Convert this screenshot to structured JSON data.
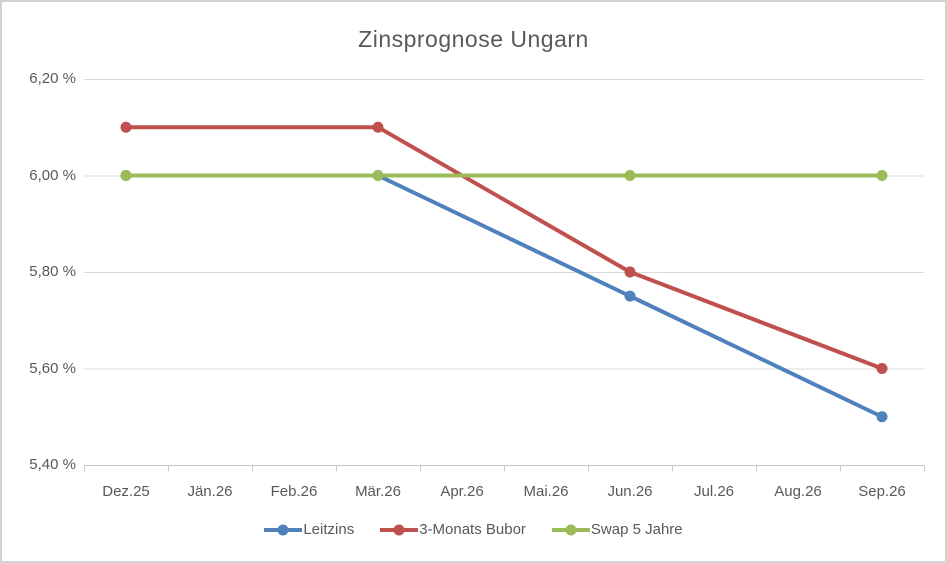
{
  "chart_data": {
    "type": "line",
    "title": "Zinsprognose Ungarn",
    "categories": [
      "Dez.25",
      "Jän.26",
      "Feb.26",
      "Mär.26",
      "Apr.26",
      "Mai.26",
      "Jun.26",
      "Jul.26",
      "Aug.26",
      "Sep.26"
    ],
    "y_axis": {
      "min": 5.4,
      "max": 6.2,
      "ticks": [
        {
          "label": "6,20 %",
          "value": 6.2
        },
        {
          "label": "6,00 %",
          "value": 6.0
        },
        {
          "label": "5,80 %",
          "value": 5.8
        },
        {
          "label": "5,60 %",
          "value": 5.6
        },
        {
          "label": "5,40 %",
          "value": 5.4
        }
      ]
    },
    "series": [
      {
        "name": "Leitzins",
        "color": "#4F81BD",
        "points": [
          {
            "category": "Dez.25",
            "value": 6.0
          },
          {
            "category": "Mär.26",
            "value": 6.0
          },
          {
            "category": "Jun.26",
            "value": 5.75
          },
          {
            "category": "Sep.26",
            "value": 5.5
          }
        ]
      },
      {
        "name": "3-Monats Bubor",
        "color": "#C0504D",
        "points": [
          {
            "category": "Dez.25",
            "value": 6.1
          },
          {
            "category": "Mär.26",
            "value": 6.1
          },
          {
            "category": "Jun.26",
            "value": 5.8
          },
          {
            "category": "Sep.26",
            "value": 5.6
          }
        ]
      },
      {
        "name": "Swap 5 Jahre",
        "color": "#9BBB59",
        "points": [
          {
            "category": "Dez.25",
            "value": 6.0
          },
          {
            "category": "Mär.26",
            "value": 6.0
          },
          {
            "category": "Jun.26",
            "value": 6.0
          },
          {
            "category": "Sep.26",
            "value": 6.0
          }
        ]
      }
    ],
    "legend": {
      "position": "bottom"
    },
    "grid": true,
    "colors": {
      "gridline": "#D9D9D9",
      "axis_line": "#C6C6C6",
      "text": "#595959",
      "background": "#FFFFFF",
      "frame_border": "#D3D3D3"
    }
  }
}
